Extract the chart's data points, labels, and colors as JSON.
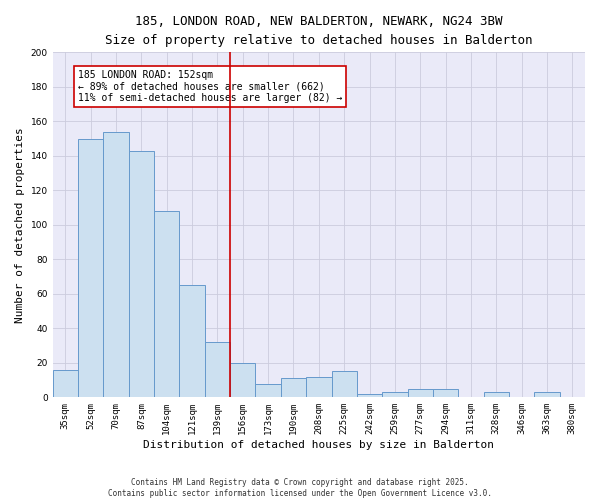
{
  "title_line1": "185, LONDON ROAD, NEW BALDERTON, NEWARK, NG24 3BW",
  "title_line2": "Size of property relative to detached houses in Balderton",
  "xlabel": "Distribution of detached houses by size in Balderton",
  "ylabel": "Number of detached properties",
  "categories": [
    "35sqm",
    "52sqm",
    "70sqm",
    "87sqm",
    "104sqm",
    "121sqm",
    "139sqm",
    "156sqm",
    "173sqm",
    "190sqm",
    "208sqm",
    "225sqm",
    "242sqm",
    "259sqm",
    "277sqm",
    "294sqm",
    "311sqm",
    "328sqm",
    "346sqm",
    "363sqm",
    "380sqm"
  ],
  "values": [
    16,
    150,
    154,
    143,
    108,
    65,
    32,
    20,
    8,
    11,
    12,
    15,
    2,
    3,
    5,
    5,
    0,
    3,
    0,
    3,
    0
  ],
  "bar_color": "#cce0f0",
  "bar_edge_color": "#6699cc",
  "vline_color": "#cc0000",
  "vline_x_idx": 7,
  "annotation_text": "185 LONDON ROAD: 152sqm\n← 89% of detached houses are smaller (662)\n11% of semi-detached houses are larger (82) →",
  "annotation_box_color": "white",
  "annotation_box_edge": "#cc0000",
  "ylim": [
    0,
    200
  ],
  "yticks": [
    0,
    20,
    40,
    60,
    80,
    100,
    120,
    140,
    160,
    180,
    200
  ],
  "grid_color": "#ccccdd",
  "bg_color": "#eaeaf8",
  "footer": "Contains HM Land Registry data © Crown copyright and database right 2025.\nContains public sector information licensed under the Open Government Licence v3.0.",
  "title_fontsize": 9,
  "subtitle_fontsize": 8.5,
  "tick_fontsize": 6.5,
  "ylabel_fontsize": 8,
  "xlabel_fontsize": 8,
  "annotation_fontsize": 7,
  "footer_fontsize": 5.5
}
